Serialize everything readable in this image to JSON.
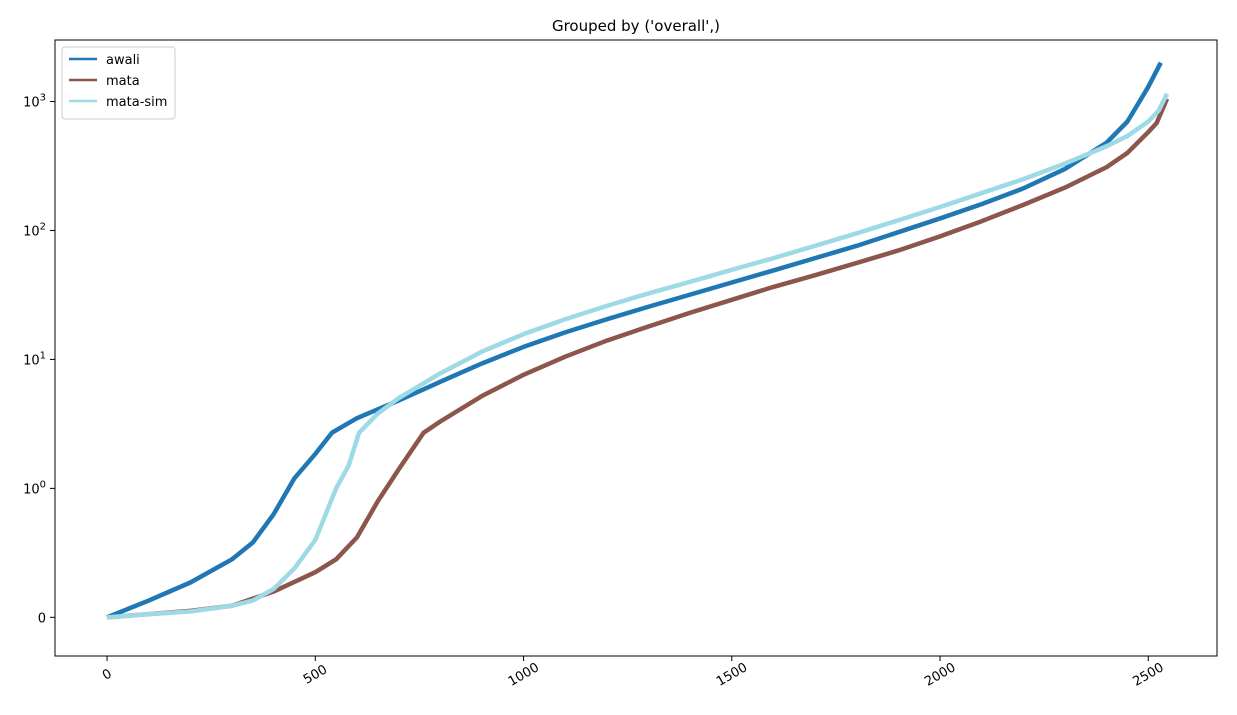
{
  "chart_data": {
    "type": "line",
    "title": "Grouped by ('overall',)",
    "xlabel": "",
    "ylabel": "",
    "x_scale": "linear",
    "y_scale": "symlog",
    "y_linthresh": 1,
    "xlim": [
      -125,
      2665
    ],
    "ylim": [
      -0.3,
      3000
    ],
    "x_ticks": [
      {
        "value": 0,
        "label": "0"
      },
      {
        "value": 500,
        "label": "500"
      },
      {
        "value": 1000,
        "label": "1000"
      },
      {
        "value": 1500,
        "label": "1500"
      },
      {
        "value": 2000,
        "label": "2000"
      },
      {
        "value": 2500,
        "label": "2500"
      }
    ],
    "y_ticks": [
      {
        "value": 0,
        "base": "",
        "exp": "",
        "plain": "0"
      },
      {
        "value": 1,
        "base": "10",
        "exp": "0",
        "plain": ""
      },
      {
        "value": 10,
        "base": "10",
        "exp": "1",
        "plain": ""
      },
      {
        "value": 100,
        "base": "10",
        "exp": "2",
        "plain": ""
      },
      {
        "value": 1000,
        "base": "10",
        "exp": "3",
        "plain": ""
      }
    ],
    "grid": false,
    "legend_position": "top-left",
    "series": [
      {
        "name": "awali",
        "color": "#1f77b4",
        "points": [
          [
            0,
            0
          ],
          [
            100,
            0.13
          ],
          [
            200,
            0.27
          ],
          [
            300,
            0.45
          ],
          [
            350,
            0.58
          ],
          [
            400,
            0.8
          ],
          [
            450,
            1.2
          ],
          [
            500,
            1.85
          ],
          [
            540,
            2.7
          ],
          [
            600,
            3.5
          ],
          [
            700,
            4.8
          ],
          [
            800,
            6.7
          ],
          [
            900,
            9.3
          ],
          [
            1000,
            12.5
          ],
          [
            1100,
            16.2
          ],
          [
            1200,
            20.5
          ],
          [
            1300,
            25.6
          ],
          [
            1400,
            31.8
          ],
          [
            1500,
            39.5
          ],
          [
            1600,
            49
          ],
          [
            1700,
            61
          ],
          [
            1800,
            76
          ],
          [
            1900,
            97
          ],
          [
            2000,
            124
          ],
          [
            2100,
            160
          ],
          [
            2200,
            212
          ],
          [
            2300,
            300
          ],
          [
            2400,
            480
          ],
          [
            2450,
            700
          ],
          [
            2500,
            1300
          ],
          [
            2530,
            2000
          ]
        ]
      },
      {
        "name": "mata",
        "color": "#8c564b",
        "points": [
          [
            0,
            0
          ],
          [
            100,
            0.025
          ],
          [
            200,
            0.05
          ],
          [
            300,
            0.09
          ],
          [
            400,
            0.2
          ],
          [
            500,
            0.35
          ],
          [
            550,
            0.45
          ],
          [
            600,
            0.62
          ],
          [
            650,
            0.9
          ],
          [
            700,
            1.4
          ],
          [
            760,
            2.7
          ],
          [
            800,
            3.3
          ],
          [
            900,
            5.2
          ],
          [
            1000,
            7.6
          ],
          [
            1100,
            10.5
          ],
          [
            1200,
            14
          ],
          [
            1300,
            18
          ],
          [
            1400,
            23
          ],
          [
            1500,
            29
          ],
          [
            1600,
            36.5
          ],
          [
            1700,
            45
          ],
          [
            1800,
            56
          ],
          [
            1900,
            70
          ],
          [
            2000,
            90
          ],
          [
            2100,
            118
          ],
          [
            2200,
            158
          ],
          [
            2300,
            215
          ],
          [
            2400,
            310
          ],
          [
            2450,
            400
          ],
          [
            2500,
            580
          ],
          [
            2520,
            680
          ],
          [
            2545,
            1050
          ]
        ]
      },
      {
        "name": "mata-sim",
        "color": "#9edae5",
        "points": [
          [
            0,
            0
          ],
          [
            100,
            0.025
          ],
          [
            200,
            0.045
          ],
          [
            300,
            0.09
          ],
          [
            350,
            0.13
          ],
          [
            400,
            0.22
          ],
          [
            450,
            0.38
          ],
          [
            500,
            0.6
          ],
          [
            550,
            1.0
          ],
          [
            580,
            1.5
          ],
          [
            605,
            2.7
          ],
          [
            650,
            3.8
          ],
          [
            700,
            5.0
          ],
          [
            800,
            7.8
          ],
          [
            900,
            11.5
          ],
          [
            1000,
            15.7
          ],
          [
            1100,
            20.5
          ],
          [
            1200,
            26
          ],
          [
            1300,
            32.5
          ],
          [
            1400,
            40
          ],
          [
            1500,
            49.5
          ],
          [
            1600,
            61
          ],
          [
            1700,
            76
          ],
          [
            1800,
            95
          ],
          [
            1900,
            120
          ],
          [
            2000,
            152
          ],
          [
            2100,
            195
          ],
          [
            2200,
            250
          ],
          [
            2300,
            330
          ],
          [
            2400,
            450
          ],
          [
            2450,
            540
          ],
          [
            2500,
            700
          ],
          [
            2525,
            850
          ],
          [
            2545,
            1150
          ]
        ]
      }
    ]
  }
}
